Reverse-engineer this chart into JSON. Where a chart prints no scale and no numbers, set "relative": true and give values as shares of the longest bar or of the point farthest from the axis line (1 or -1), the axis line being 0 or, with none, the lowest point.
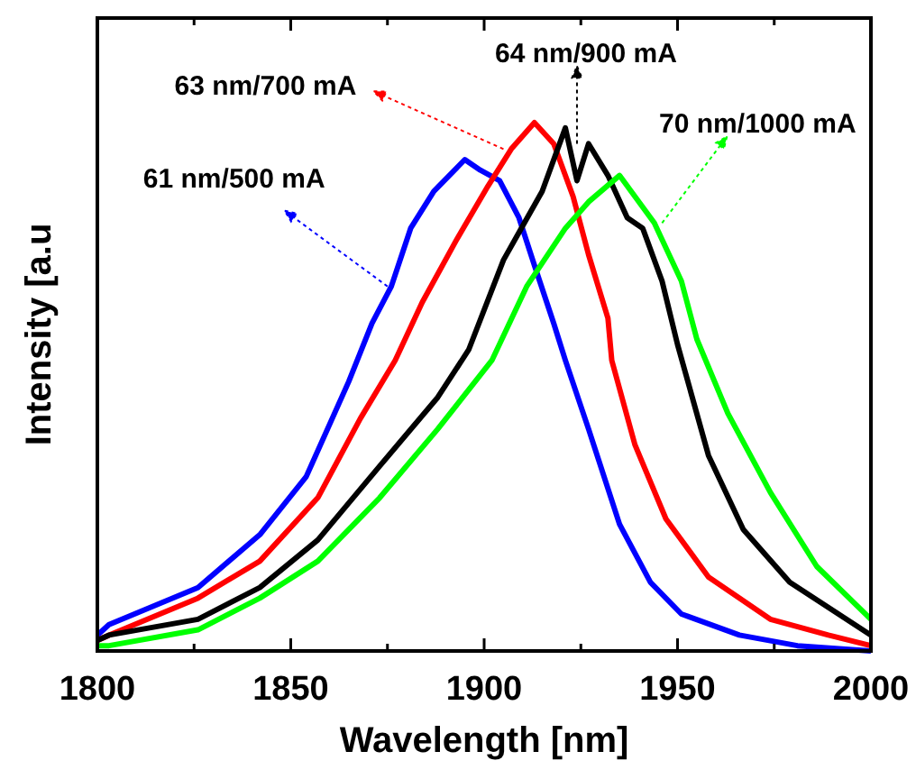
{
  "chart_data": {
    "type": "line",
    "relative": true,
    "xlabel": "Wavelength [nm]",
    "ylabel": "Intensity [a.u",
    "xlim": [
      1800,
      2000
    ],
    "xticks": [
      1800,
      {
        "value": 1825,
        "label": null
      },
      1850,
      {
        "value": 1875,
        "label": null
      },
      1900,
      {
        "value": 1925,
        "label": null
      },
      1950,
      {
        "value": 1975,
        "label": null
      },
      2000
    ],
    "annotations": [
      {
        "text": "61 nm/500 mA",
        "x": 1875,
        "y": 0.69
      },
      {
        "text": "63 nm/700 mA",
        "x": 1905,
        "y": 0.95
      },
      {
        "text": "64 nm/900 mA",
        "x": 1924,
        "y": 0.96
      },
      {
        "text": "70 nm/1000 mA",
        "x": 1946,
        "y": 0.81
      }
    ],
    "series": [
      {
        "color": "#0000ff",
        "x": [
          1800,
          1803,
          1826,
          1842,
          1854,
          1865,
          1871,
          1876,
          1881,
          1887,
          1895,
          1899,
          1904,
          1909,
          1913,
          1918,
          1921,
          1927,
          1935,
          1943,
          1951,
          1966,
          1981,
          2000
        ],
        "values": [
          0.03,
          0.05,
          0.12,
          0.22,
          0.33,
          0.51,
          0.62,
          0.69,
          0.8,
          0.87,
          0.93,
          0.91,
          0.89,
          0.82,
          0.73,
          0.62,
          0.55,
          0.42,
          0.24,
          0.13,
          0.07,
          0.03,
          0.01,
          0.0
        ]
      },
      {
        "color": "#ff0000",
        "x": [
          1800,
          1803,
          1826,
          1842,
          1857,
          1868,
          1877,
          1884,
          1893,
          1901,
          1907,
          1913,
          1918,
          1923,
          1927,
          1932,
          1933,
          1939,
          1947,
          1958,
          1974,
          1989,
          2000
        ],
        "values": [
          0.02,
          0.03,
          0.1,
          0.17,
          0.29,
          0.44,
          0.55,
          0.66,
          0.78,
          0.88,
          0.95,
          1.0,
          0.96,
          0.86,
          0.75,
          0.63,
          0.55,
          0.39,
          0.25,
          0.14,
          0.06,
          0.03,
          0.01
        ]
      },
      {
        "color": "#000000",
        "x": [
          1800,
          1803,
          1826,
          1842,
          1857,
          1873,
          1888,
          1896,
          1905,
          1915,
          1921,
          1924,
          1927,
          1932,
          1937,
          1941,
          1946,
          1950,
          1958,
          1967,
          1979,
          2000
        ],
        "values": [
          0.02,
          0.03,
          0.06,
          0.12,
          0.21,
          0.35,
          0.48,
          0.57,
          0.74,
          0.87,
          0.99,
          0.89,
          0.96,
          0.9,
          0.82,
          0.8,
          0.7,
          0.58,
          0.37,
          0.23,
          0.13,
          0.03
        ]
      },
      {
        "color": "#00ff00",
        "x": [
          1800,
          1803,
          1826,
          1842,
          1857,
          1873,
          1888,
          1902,
          1911,
          1921,
          1927,
          1935,
          1939,
          1944,
          1951,
          1955,
          1963,
          1974,
          1986,
          2000
        ],
        "values": [
          0.01,
          0.01,
          0.04,
          0.1,
          0.17,
          0.29,
          0.42,
          0.55,
          0.69,
          0.8,
          0.85,
          0.9,
          0.86,
          0.81,
          0.7,
          0.59,
          0.45,
          0.3,
          0.16,
          0.06
        ]
      }
    ]
  }
}
